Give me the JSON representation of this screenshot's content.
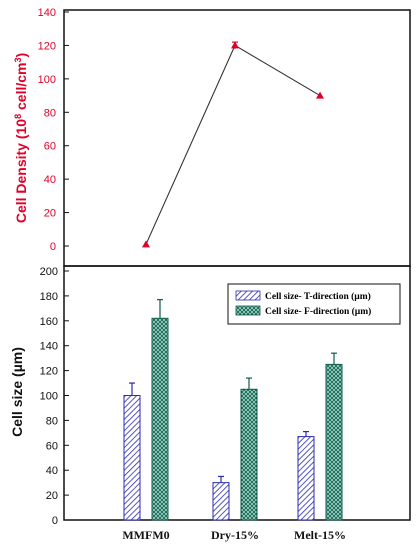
{
  "chart_data": [
    {
      "type": "line",
      "ylabel_main": "Cell Density (10",
      "ylabel_sup1": "8",
      "ylabel_mid": " cell/cm",
      "ylabel_sup2": "3",
      "ylabel_end": ")",
      "ylim": [
        0,
        140
      ],
      "yticks": [
        0,
        20,
        40,
        60,
        80,
        100,
        120,
        140
      ],
      "categories": [
        "MMFM0",
        "Dry-15%",
        "Melt-15%"
      ],
      "series": [
        {
          "values": [
            1,
            120,
            90
          ],
          "errors": [
            0,
            2,
            0
          ],
          "color": "#e0002a",
          "line_color": "#333333"
        }
      ],
      "grid": false
    },
    {
      "type": "bar",
      "ylabel": "Cell size (µm)",
      "ylim": [
        0,
        200
      ],
      "yticks": [
        0,
        20,
        40,
        60,
        80,
        100,
        120,
        140,
        160,
        180,
        200
      ],
      "categories": [
        "MMFM0",
        "Dry-15%",
        "Melt-15%"
      ],
      "series": [
        {
          "name": "Cell size- T-direction (µm)",
          "values": [
            100,
            30,
            67
          ],
          "errors": [
            10,
            5,
            4
          ],
          "color": "#2b2bb0",
          "pattern": "diagonal-hatch"
        },
        {
          "name": "Cell size- F-direction (µm)",
          "values": [
            162,
            105,
            125
          ],
          "errors": [
            15,
            9,
            9
          ],
          "color": "#0f5a4a",
          "pattern": "crosshatch"
        }
      ],
      "legend_position": "top-right",
      "grid": false
    }
  ]
}
